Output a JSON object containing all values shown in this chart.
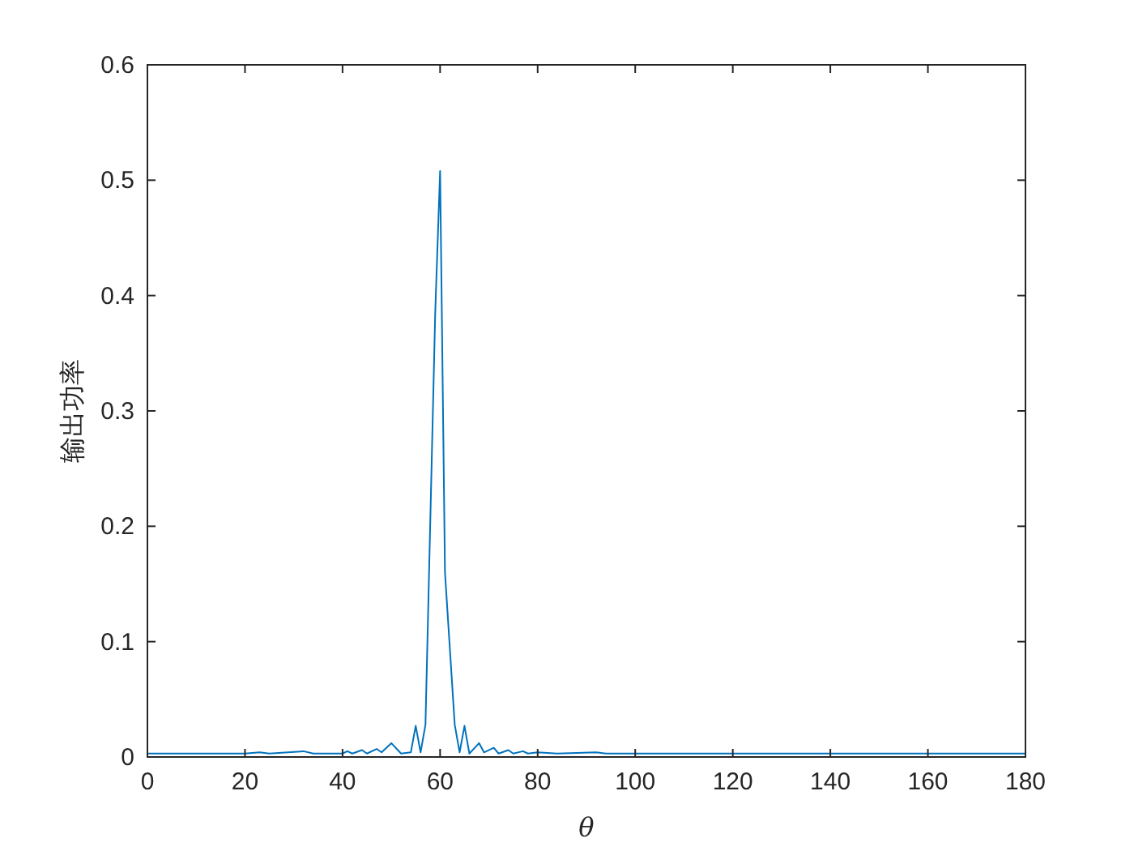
{
  "chart_data": {
    "type": "line",
    "xlabel": "θ",
    "ylabel": "输出功率",
    "x": [
      0,
      10,
      20,
      23,
      25,
      32,
      34,
      40,
      41,
      42,
      44,
      45,
      47,
      48,
      50,
      52,
      54,
      55,
      56,
      57,
      59,
      60,
      61,
      63,
      64,
      65,
      66,
      68,
      69,
      71,
      72,
      74,
      75,
      77,
      78,
      80,
      84,
      92,
      94,
      180
    ],
    "series": [
      {
        "color": "#0072bd",
        "values": [
          0.003,
          0.003,
          0.003,
          0.004,
          0.003,
          0.005,
          0.003,
          0.003,
          0.005,
          0.003,
          0.006,
          0.003,
          0.007,
          0.004,
          0.012,
          0.003,
          0.004,
          0.027,
          0.004,
          0.028,
          0.385,
          0.508,
          0.16,
          0.028,
          0.004,
          0.027,
          0.003,
          0.012,
          0.004,
          0.008,
          0.003,
          0.006,
          0.003,
          0.005,
          0.003,
          0.004,
          0.003,
          0.004,
          0.003,
          0.003
        ]
      }
    ],
    "xlim": [
      0,
      180
    ],
    "xticks": [
      0,
      20,
      40,
      60,
      80,
      100,
      120,
      140,
      160,
      180
    ],
    "ylim": [
      0,
      0.6
    ],
    "yticks": [
      0,
      0.1,
      0.2,
      0.3,
      0.4,
      0.5,
      0.6
    ],
    "grid": false
  }
}
